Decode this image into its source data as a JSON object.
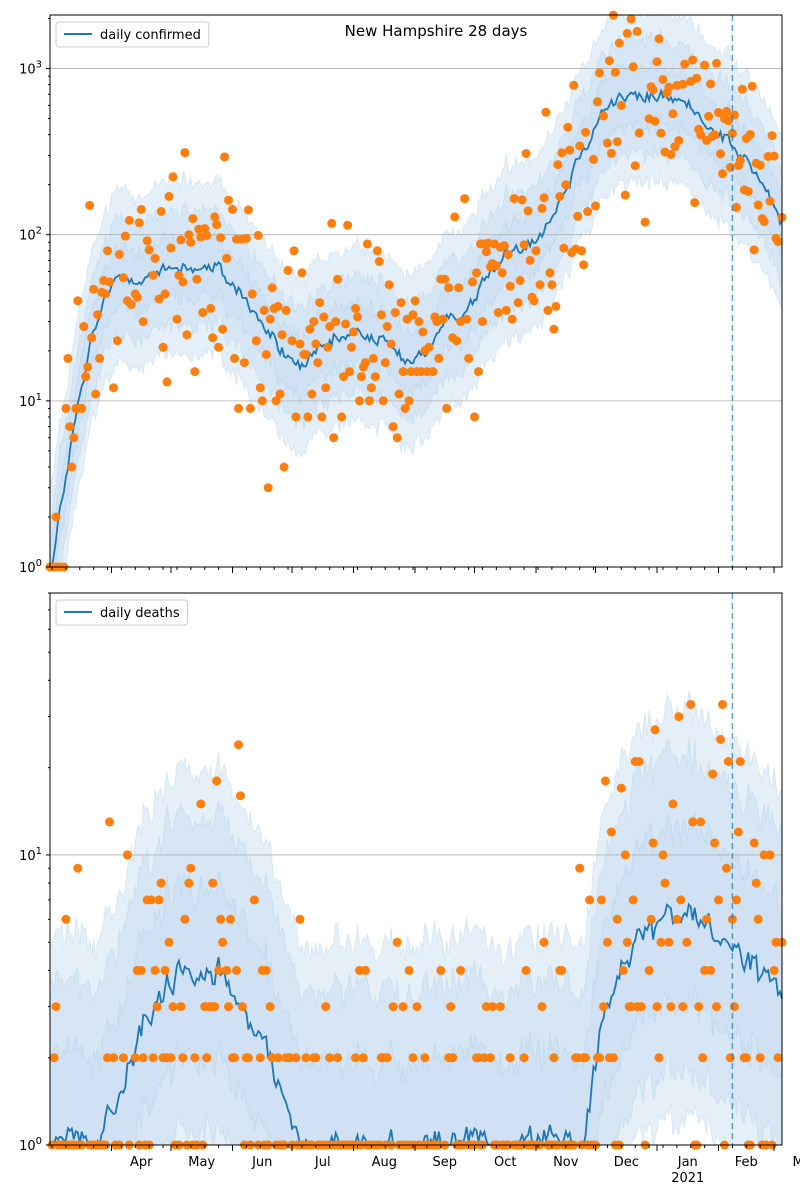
{
  "chart_data": [
    {
      "type": "line",
      "title": "New Hampshire 28 days",
      "yscale": "log",
      "ylim": [
        1,
        2100
      ],
      "xlim": [
        "2020-03-01",
        "2021-03-05"
      ],
      "grid": "y-major",
      "legend": {
        "placement": "top-left",
        "entries": [
          "daily confirmed"
        ]
      },
      "y_tick_labels": [
        "10^0",
        "10^1",
        "10^2",
        "10^3"
      ],
      "vline_date": "2021-02-08",
      "colors": {
        "line": "#1f77b4",
        "points": "#ff7f0e",
        "band": "#c6dbef"
      },
      "anchors": [
        [
          "2020-03-02",
          1
        ],
        [
          "2020-03-08",
          3
        ],
        [
          "2020-03-15",
          9
        ],
        [
          "2020-03-22",
          22
        ],
        [
          "2020-03-29",
          42
        ],
        [
          "2020-04-05",
          55
        ],
        [
          "2020-04-15",
          58
        ],
        [
          "2020-04-25",
          57
        ],
        [
          "2020-05-05",
          65
        ],
        [
          "2020-05-15",
          64
        ],
        [
          "2020-05-25",
          60
        ],
        [
          "2020-06-05",
          45
        ],
        [
          "2020-06-15",
          30
        ],
        [
          "2020-06-25",
          20
        ],
        [
          "2020-07-05",
          16
        ],
        [
          "2020-07-15",
          19
        ],
        [
          "2020-07-25",
          23
        ],
        [
          "2020-08-05",
          25
        ],
        [
          "2020-08-15",
          23
        ],
        [
          "2020-08-25",
          18
        ],
        [
          "2020-09-05",
          19
        ],
        [
          "2020-09-15",
          26
        ],
        [
          "2020-09-25",
          35
        ],
        [
          "2020-10-05",
          50
        ],
        [
          "2020-10-15",
          72
        ],
        [
          "2020-10-25",
          88
        ],
        [
          "2020-11-05",
          110
        ],
        [
          "2020-11-15",
          180
        ],
        [
          "2020-11-25",
          350
        ],
        [
          "2020-12-05",
          580
        ],
        [
          "2020-12-15",
          680
        ],
        [
          "2020-12-25",
          650
        ],
        [
          "2021-01-05",
          700
        ],
        [
          "2021-01-15",
          600
        ],
        [
          "2021-01-25",
          500
        ],
        [
          "2021-02-05",
          380
        ],
        [
          "2021-02-15",
          280
        ],
        [
          "2021-02-25",
          180
        ],
        [
          "2021-03-05",
          120
        ]
      ],
      "band_factors": [
        1.5,
        2.2,
        3.3
      ],
      "scatter_noise": 0.45
    },
    {
      "type": "line",
      "title": "",
      "yscale": "log",
      "ylim": [
        1,
        80
      ],
      "xlim": [
        "2020-03-01",
        "2021-03-05"
      ],
      "grid": "y-major",
      "legend": {
        "placement": "top-left",
        "entries": [
          "daily deaths"
        ]
      },
      "y_tick_labels": [
        "10^0",
        "10^1"
      ],
      "x_tick_labels": [
        "Apr",
        "May",
        "Jun",
        "Jul",
        "Aug",
        "Sep",
        "Oct",
        "Nov",
        "Dec",
        "Jan",
        "Feb",
        "Mar"
      ],
      "x_year_label": "2021",
      "vline_date": "2021-02-08",
      "colors": {
        "line": "#1f77b4",
        "points": "#ff7f0e",
        "band": "#c6dbef"
      },
      "anchors": [
        [
          "2020-03-25",
          1
        ],
        [
          "2020-04-10",
          2
        ],
        [
          "2020-04-25",
          3
        ],
        [
          "2020-05-05",
          4
        ],
        [
          "2020-05-25",
          4
        ],
        [
          "2020-06-05",
          3
        ],
        [
          "2020-06-20",
          2
        ],
        [
          "2020-07-05",
          1
        ],
        [
          "2020-08-15",
          1
        ],
        [
          "2020-10-20",
          1
        ],
        [
          "2020-11-25",
          1
        ],
        [
          "2020-12-05",
          3
        ],
        [
          "2020-12-20",
          5
        ],
        [
          "2021-01-05",
          6
        ],
        [
          "2021-01-20",
          6
        ],
        [
          "2021-02-05",
          5
        ],
        [
          "2021-02-20",
          4
        ],
        [
          "2021-03-05",
          3
        ]
      ],
      "band_factors": [
        2.0,
        3.5,
        5.0
      ],
      "scatter_noise": 0.55
    }
  ]
}
